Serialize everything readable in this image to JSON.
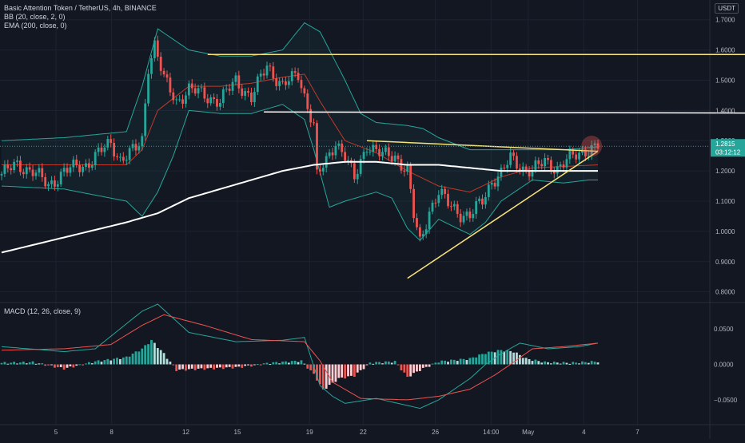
{
  "header": {
    "symbol_line": "Basic Attention Token / TetherUS, 4h, BINANCE",
    "bb_label": "BB (20, close, 2, 0)",
    "ema_label": "EMA (200, close, 0)",
    "currency_button": "USDT"
  },
  "macd_label": "MACD (12, 26, close, 9)",
  "last_price": {
    "value": "1.2815",
    "countdown": "03:12:12"
  },
  "colors": {
    "up": "#26a69a",
    "down": "#ef5350",
    "ema": "#ffffff",
    "trendline": "#f7e479",
    "bb_line": "#26a69a",
    "bb_basis": "#c0392b",
    "macd_line": "#26a69a",
    "signal_line": "#ef5350"
  },
  "chart_data": [
    {
      "type": "candlestick",
      "title": "Basic Attention Token / TetherUS, 4h, BINANCE",
      "ylim": [
        0.77,
        1.76
      ],
      "yticks": [
        0.8,
        0.9,
        1.0,
        1.1,
        1.2,
        1.3,
        1.4,
        1.5,
        1.6,
        1.7
      ],
      "ytick_labels": [
        "0.8000",
        "0.9000",
        "1.0000",
        "1.1000",
        "1.2000",
        "1.3000",
        "1.4000",
        "1.5000",
        "1.6000",
        "1.7000"
      ],
      "xticks": [
        "5",
        "8",
        "12",
        "15",
        "19",
        "22",
        "26",
        "14:00",
        "May",
        "4",
        "7"
      ],
      "price_path": [
        [
          0,
          1.19
        ],
        [
          5,
          1.22
        ],
        [
          10,
          1.2
        ],
        [
          15,
          1.15
        ],
        [
          20,
          1.2
        ],
        [
          27,
          1.22
        ],
        [
          30,
          1.25
        ],
        [
          35,
          1.29
        ],
        [
          38,
          1.24
        ],
        [
          43,
          1.27
        ],
        [
          45,
          1.3
        ],
        [
          47,
          1.55
        ],
        [
          49,
          1.62
        ],
        [
          52,
          1.5
        ],
        [
          56,
          1.43
        ],
        [
          60,
          1.47
        ],
        [
          65,
          1.45
        ],
        [
          70,
          1.43
        ],
        [
          75,
          1.5
        ],
        [
          80,
          1.44
        ],
        [
          85,
          1.55
        ],
        [
          90,
          1.48
        ],
        [
          95,
          1.52
        ],
        [
          97,
          1.45
        ],
        [
          100,
          1.35
        ],
        [
          101,
          1.18
        ],
        [
          104,
          1.23
        ],
        [
          107,
          1.3
        ],
        [
          110,
          1.25
        ],
        [
          113,
          1.17
        ],
        [
          117,
          1.29
        ],
        [
          122,
          1.25
        ],
        [
          126,
          1.25
        ],
        [
          130,
          1.2
        ],
        [
          132,
          1.05
        ],
        [
          134,
          0.96
        ],
        [
          137,
          1.07
        ],
        [
          140,
          1.13
        ],
        [
          143,
          1.09
        ],
        [
          147,
          1.06
        ],
        [
          150,
          1.05
        ],
        [
          154,
          1.1
        ],
        [
          157,
          1.17
        ],
        [
          160,
          1.19
        ],
        [
          163,
          1.24
        ],
        [
          167,
          1.21
        ],
        [
          170,
          1.2
        ],
        [
          174,
          1.23
        ],
        [
          178,
          1.21
        ],
        [
          182,
          1.24
        ],
        [
          187,
          1.27
        ],
        [
          191,
          1.28
        ]
      ],
      "ema200": [
        [
          0,
          0.93
        ],
        [
          20,
          0.98
        ],
        [
          40,
          1.03
        ],
        [
          50,
          1.06
        ],
        [
          60,
          1.11
        ],
        [
          70,
          1.14
        ],
        [
          80,
          1.17
        ],
        [
          90,
          1.2
        ],
        [
          100,
          1.22
        ],
        [
          110,
          1.23
        ],
        [
          120,
          1.23
        ],
        [
          130,
          1.22
        ],
        [
          140,
          1.22
        ],
        [
          150,
          1.21
        ],
        [
          160,
          1.2
        ],
        [
          170,
          1.2
        ],
        [
          191,
          1.2
        ]
      ],
      "bb_upper": [
        [
          0,
          1.3
        ],
        [
          20,
          1.31
        ],
        [
          40,
          1.33
        ],
        [
          45,
          1.48
        ],
        [
          50,
          1.67
        ],
        [
          60,
          1.6
        ],
        [
          70,
          1.58
        ],
        [
          80,
          1.58
        ],
        [
          90,
          1.6
        ],
        [
          97,
          1.69
        ],
        [
          102,
          1.66
        ],
        [
          110,
          1.5
        ],
        [
          115,
          1.39
        ],
        [
          120,
          1.36
        ],
        [
          130,
          1.35
        ],
        [
          135,
          1.34
        ],
        [
          140,
          1.31
        ],
        [
          150,
          1.27
        ],
        [
          160,
          1.27
        ],
        [
          170,
          1.27
        ],
        [
          180,
          1.27
        ],
        [
          191,
          1.28
        ]
      ],
      "bb_lower": [
        [
          0,
          1.15
        ],
        [
          20,
          1.14
        ],
        [
          40,
          1.1
        ],
        [
          45,
          1.05
        ],
        [
          50,
          1.13
        ],
        [
          55,
          1.25
        ],
        [
          60,
          1.4
        ],
        [
          70,
          1.39
        ],
        [
          80,
          1.39
        ],
        [
          90,
          1.42
        ],
        [
          97,
          1.37
        ],
        [
          100,
          1.27
        ],
        [
          105,
          1.08
        ],
        [
          110,
          1.1
        ],
        [
          120,
          1.13
        ],
        [
          125,
          1.11
        ],
        [
          130,
          1.01
        ],
        [
          134,
          0.97
        ],
        [
          140,
          1.04
        ],
        [
          150,
          0.99
        ],
        [
          155,
          1.03
        ],
        [
          160,
          1.1
        ],
        [
          170,
          1.17
        ],
        [
          180,
          1.16
        ],
        [
          188,
          1.17
        ]
      ],
      "bb_basis": [
        [
          0,
          1.22
        ],
        [
          20,
          1.22
        ],
        [
          40,
          1.22
        ],
        [
          45,
          1.27
        ],
        [
          50,
          1.4
        ],
        [
          60,
          1.48
        ],
        [
          70,
          1.48
        ],
        [
          80,
          1.49
        ],
        [
          90,
          1.51
        ],
        [
          97,
          1.52
        ],
        [
          102,
          1.43
        ],
        [
          110,
          1.3
        ],
        [
          120,
          1.26
        ],
        [
          130,
          1.2
        ],
        [
          140,
          1.15
        ],
        [
          150,
          1.13
        ],
        [
          160,
          1.18
        ],
        [
          170,
          1.21
        ],
        [
          191,
          1.22
        ]
      ],
      "resistance_lines": [
        1.585,
        1.395,
        1.39
      ],
      "triangle": {
        "lower": [
          [
            130,
            0.845
          ],
          [
            191,
            1.265
          ]
        ],
        "upper": [
          [
            117,
            1.3
          ],
          [
            191,
            1.265
          ]
        ]
      },
      "last_price": 1.2815
    },
    {
      "type": "bar",
      "title": "MACD (12, 26, close, 9)",
      "ylim": [
        -0.085,
        0.085
      ],
      "yticks": [
        -0.05,
        0,
        0.05
      ],
      "ytick_labels": [
        "−0.0500",
        "0.0000",
        "0.0500"
      ],
      "hist_path": [
        [
          0,
          0.002
        ],
        [
          10,
          0.003
        ],
        [
          20,
          -0.006
        ],
        [
          30,
          0.004
        ],
        [
          40,
          0.01
        ],
        [
          45,
          0.022
        ],
        [
          48,
          0.034
        ],
        [
          52,
          0.015
        ],
        [
          56,
          -0.008
        ],
        [
          66,
          -0.006
        ],
        [
          76,
          -0.004
        ],
        [
          86,
          0.002
        ],
        [
          96,
          0.005
        ],
        [
          100,
          -0.014
        ],
        [
          103,
          -0.036
        ],
        [
          108,
          -0.02
        ],
        [
          113,
          -0.016
        ],
        [
          118,
          0.002
        ],
        [
          126,
          0.004
        ],
        [
          130,
          -0.018
        ],
        [
          134,
          -0.008
        ],
        [
          140,
          0.004
        ],
        [
          150,
          0.008
        ],
        [
          155,
          0.016
        ],
        [
          160,
          0.02
        ],
        [
          164,
          0.018
        ],
        [
          168,
          0.008
        ],
        [
          174,
          0.003
        ],
        [
          182,
          0.002
        ],
        [
          191,
          0.004
        ]
      ],
      "macd_path": [
        [
          0,
          0.025
        ],
        [
          20,
          0.018
        ],
        [
          30,
          0.022
        ],
        [
          45,
          0.075
        ],
        [
          50,
          0.085
        ],
        [
          60,
          0.045
        ],
        [
          75,
          0.032
        ],
        [
          90,
          0.034
        ],
        [
          97,
          0.038
        ],
        [
          102,
          -0.03
        ],
        [
          106,
          -0.045
        ],
        [
          110,
          -0.055
        ],
        [
          120,
          -0.048
        ],
        [
          130,
          -0.058
        ],
        [
          134,
          -0.062
        ],
        [
          140,
          -0.05
        ],
        [
          150,
          -0.02
        ],
        [
          155,
          0.0
        ],
        [
          160,
          0.015
        ],
        [
          166,
          0.03
        ],
        [
          175,
          0.022
        ],
        [
          185,
          0.025
        ],
        [
          191,
          0.03
        ]
      ],
      "signal_path": [
        [
          0,
          0.02
        ],
        [
          20,
          0.022
        ],
        [
          35,
          0.028
        ],
        [
          45,
          0.055
        ],
        [
          52,
          0.07
        ],
        [
          65,
          0.055
        ],
        [
          80,
          0.035
        ],
        [
          97,
          0.032
        ],
        [
          102,
          0.005
        ],
        [
          106,
          -0.025
        ],
        [
          115,
          -0.048
        ],
        [
          130,
          -0.05
        ],
        [
          140,
          -0.045
        ],
        [
          150,
          -0.035
        ],
        [
          158,
          -0.015
        ],
        [
          163,
          0.0
        ],
        [
          170,
          0.022
        ],
        [
          180,
          0.025
        ],
        [
          191,
          0.03
        ]
      ]
    }
  ]
}
